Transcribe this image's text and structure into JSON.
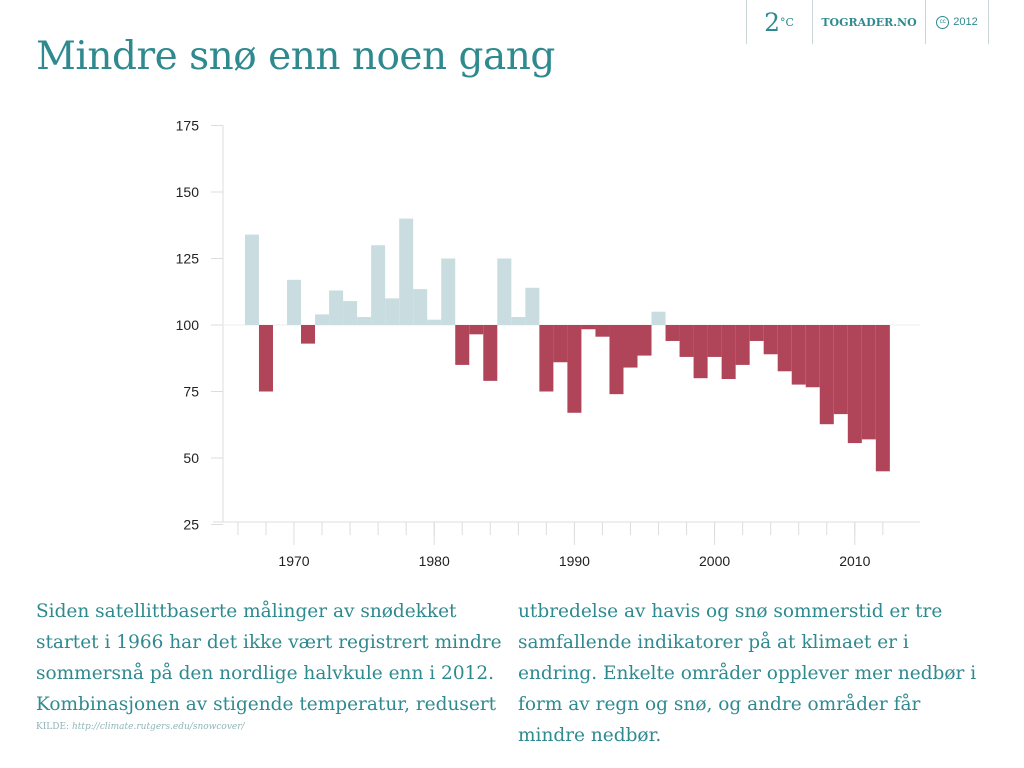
{
  "title": "Mindre snø enn noen gang",
  "header": {
    "logo": "2°C",
    "logo_num": "2",
    "logo_deg": "°C",
    "site": "TOGRADER.NO",
    "license_icon": "cc",
    "year": "2012"
  },
  "text": {
    "left": "Siden satellittbaserte målinger av snødekket startet i 1966 har det ikke vært registrert mindre sommersnå på den nordlige halvkule enn i 2012. Kombinasjonen av stigende temperatur, redusert",
    "right": "utbredelse av havis og snø sommerstid er tre samfallende indikatorer på at klimaet er i endring. Enkelte områder opplever mer nedbør i form av regn og snø, og andre områder får mindre nedbør."
  },
  "source": {
    "label": "KILDE:",
    "url": "http://climate.rutgers.edu/snowcover/"
  },
  "colors": {
    "above": "#c9dde1",
    "below": "#b04458",
    "text": "#2e8a8f"
  },
  "chart_data": {
    "type": "bar",
    "baseline": 100,
    "ylim": [
      25,
      175
    ],
    "yticks": [
      25,
      50,
      75,
      100,
      125,
      150,
      175
    ],
    "xlim": [
      1965,
      2014
    ],
    "xticks": [
      1970,
      1980,
      1990,
      2000,
      2010
    ],
    "grid": false,
    "x": [
      1967,
      1968,
      1969,
      1970,
      1971,
      1972,
      1973,
      1974,
      1975,
      1976,
      1977,
      1978,
      1979,
      1980,
      1981,
      1982,
      1983,
      1984,
      1985,
      1986,
      1987,
      1988,
      1989,
      1990,
      1991,
      1992,
      1993,
      1994,
      1995,
      1996,
      1997,
      1998,
      1999,
      2000,
      2001,
      2002,
      2003,
      2004,
      2005,
      2006,
      2007,
      2008,
      2009,
      2010,
      2011,
      2012
    ],
    "values": [
      134,
      75,
      100,
      117,
      93,
      104,
      113,
      109,
      103,
      130,
      110,
      140,
      113.5,
      102,
      125,
      85,
      96.5,
      79,
      125,
      103,
      114,
      75,
      86,
      67,
      98.4,
      95.6,
      74,
      84,
      88.5,
      105,
      94,
      88,
      80,
      88,
      79.7,
      85,
      94,
      89,
      82.6,
      77.6,
      76.6,
      62.7,
      66.5,
      55.6,
      57,
      45
    ]
  }
}
